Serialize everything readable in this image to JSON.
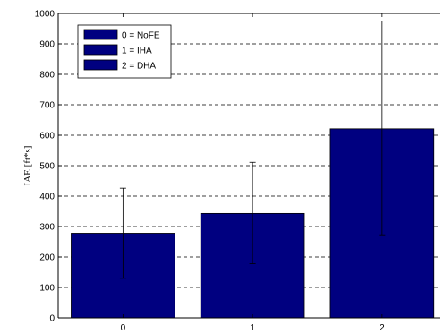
{
  "chart_data": {
    "type": "bar",
    "title": "",
    "xlabel": "",
    "ylabel": "IAE  [ft*s]",
    "ylim": [
      0,
      1000
    ],
    "yticks": [
      0,
      100,
      200,
      300,
      400,
      500,
      600,
      700,
      800,
      900,
      1000
    ],
    "categories": [
      "0",
      "1",
      "2"
    ],
    "values": [
      278,
      343,
      621
    ],
    "error_low": [
      130,
      178,
      273
    ],
    "error_high": [
      426,
      511,
      975
    ],
    "grid": "horizontal dashed",
    "legend_position": "top-left",
    "legend": [
      "0 = NoFE",
      "1 = IHA",
      "2 = DHA"
    ],
    "bar_color": "#000080",
    "error_bar_color": "#000000"
  }
}
